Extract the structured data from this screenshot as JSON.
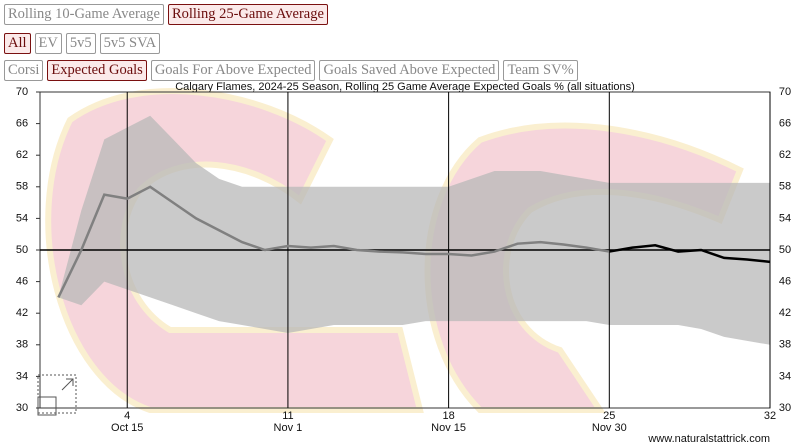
{
  "ui": {
    "rows": [
      [
        {
          "label": "Rolling 10-Game Average",
          "selected": false
        },
        {
          "label": "Rolling 25-Game Average",
          "selected": true
        }
      ],
      [
        {
          "label": "All",
          "selected": true
        },
        {
          "label": "EV",
          "selected": false
        },
        {
          "label": "5v5",
          "selected": false
        },
        {
          "label": "5v5 SVA",
          "selected": false
        }
      ],
      [
        {
          "label": "Corsi",
          "selected": false
        },
        {
          "label": "Expected Goals",
          "selected": true
        },
        {
          "label": "Goals For Above Expected",
          "selected": false
        },
        {
          "label": "Goals Saved Above Expected",
          "selected": false
        },
        {
          "label": "Team SV%",
          "selected": false
        }
      ]
    ],
    "watermark": "www.naturalstattrick.com"
  },
  "chart_data": {
    "type": "line",
    "title": "Calgary Flames, 2024-25 Season, Rolling 25 Game Average Expected Goals % (all situations)",
    "x": [
      1,
      2,
      3,
      4,
      5,
      6,
      7,
      8,
      9,
      10,
      11,
      12,
      13,
      14,
      15,
      16,
      17,
      18,
      19,
      20,
      21,
      22,
      23,
      24,
      25,
      26,
      27,
      28,
      29,
      30,
      31,
      32
    ],
    "series": [
      {
        "color": "#808080",
        "values": [
          44,
          50,
          57,
          56.5,
          58,
          56,
          54,
          52.5,
          51,
          50,
          50.5,
          50.3,
          50.5,
          50,
          49.8,
          49.7,
          49.5,
          49.5,
          49.3,
          49.8,
          50.8,
          51,
          50.7,
          50.3,
          49.8,
          null,
          null,
          null,
          null,
          null,
          null,
          null
        ]
      },
      {
        "color": "#000000",
        "values": [
          null,
          null,
          null,
          null,
          null,
          null,
          null,
          null,
          null,
          null,
          null,
          null,
          null,
          null,
          null,
          null,
          null,
          null,
          null,
          null,
          null,
          null,
          null,
          null,
          49.8,
          50.3,
          50.6,
          49.8,
          50,
          49,
          48.8,
          48.5
        ]
      }
    ],
    "band": {
      "color": "#b8b8b8",
      "upper": [
        44,
        55,
        64,
        65.5,
        67,
        64,
        61,
        59,
        58,
        58,
        58,
        58,
        58,
        58,
        58,
        58,
        58,
        58,
        59,
        60,
        60,
        60,
        59.5,
        59,
        58.5,
        58.5,
        58.5,
        58.5,
        58.5,
        58.5,
        58.5,
        58.5
      ],
      "lower": [
        44,
        43,
        46,
        45,
        44,
        43,
        42,
        41,
        40.5,
        40,
        39.5,
        40,
        40.5,
        40.5,
        40.5,
        40.5,
        41,
        41,
        41,
        41,
        41,
        41,
        41,
        41,
        40.5,
        40.5,
        40.5,
        40.5,
        40,
        39,
        38.5,
        38
      ]
    },
    "reference_line": 50,
    "xlim": [
      0.2,
      32
    ],
    "xticks": [
      4,
      11,
      18,
      25,
      32
    ],
    "x_date_labels": [
      {
        "value": 4,
        "label": "Oct 15"
      },
      {
        "value": 11,
        "label": "Nov 1"
      },
      {
        "value": 18,
        "label": "Nov 15"
      },
      {
        "value": 25,
        "label": "Nov 30"
      }
    ],
    "ylim": [
      30,
      70
    ],
    "yticks": [
      30,
      34,
      38,
      42,
      46,
      50,
      54,
      58,
      62,
      66,
      70
    ]
  }
}
